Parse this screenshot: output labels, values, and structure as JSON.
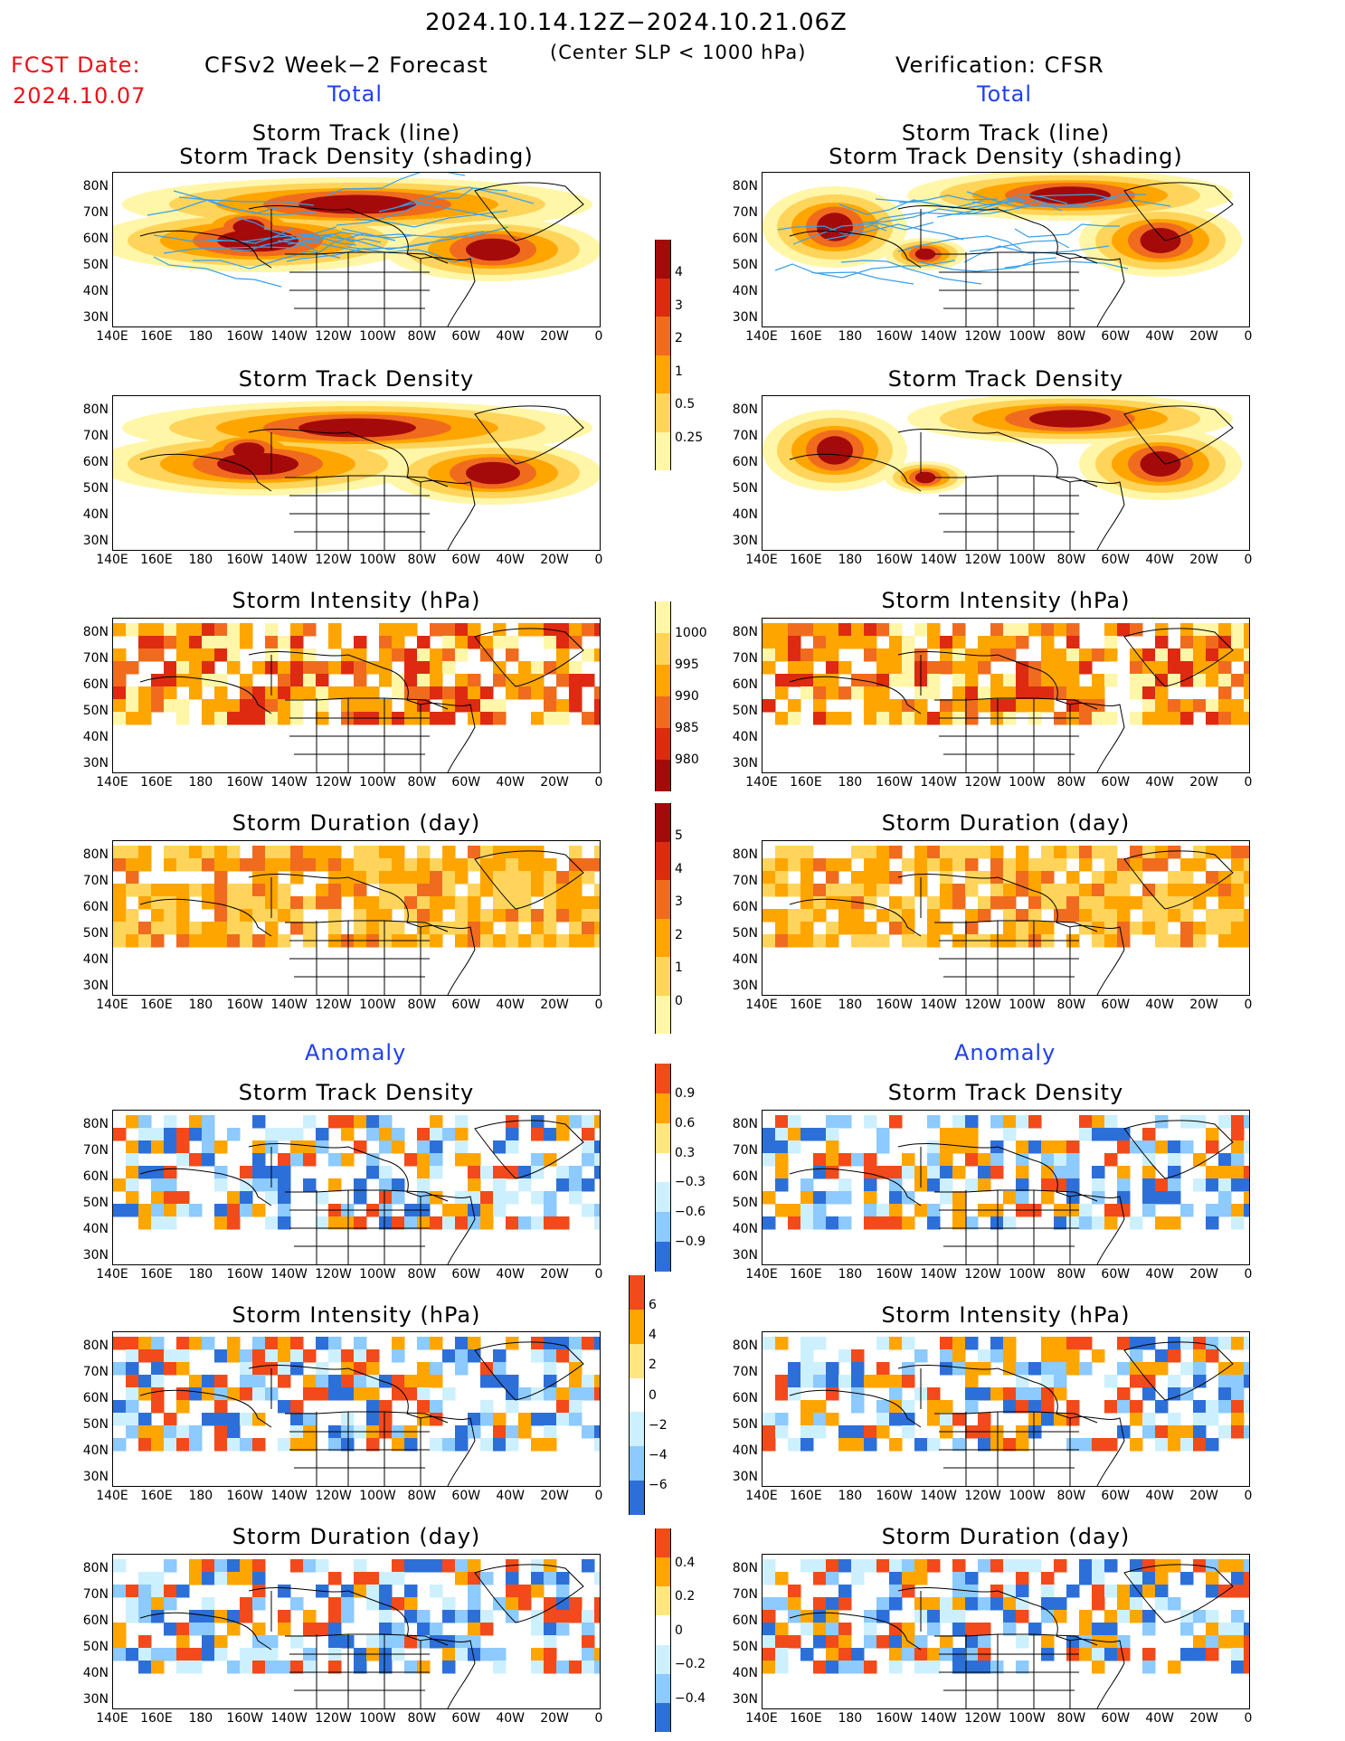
{
  "header": {
    "date_range": "2024.10.14.12Z−2024.10.21.06Z",
    "subtitle": "(Center SLP < 1000 hPa)",
    "fcst_label": "FCST Date:",
    "fcst_date": "2024.10.07",
    "model_title": "CFSv2 Week−2 Forecast",
    "verification": "Verification: CFSR"
  },
  "sections": {
    "total_left": "Total",
    "total_right": "Total",
    "anomaly_left": "Anomaly",
    "anomaly_right": "Anomaly"
  },
  "panel_titles": {
    "track_line": "Storm Track (line)",
    "track_shading": "Storm Track Density (shading)",
    "density": "Storm Track Density",
    "intensity": "Storm Intensity (hPa)",
    "duration": "Storm Duration (day)"
  },
  "axes": {
    "lat_labels": [
      "80N",
      "70N",
      "60N",
      "50N",
      "40N",
      "30N"
    ],
    "lon_labels": [
      "140E",
      "160E",
      "180",
      "160W",
      "140W",
      "120W",
      "100W",
      "80W",
      "60W",
      "40W",
      "20W",
      "0"
    ]
  },
  "colorbars": {
    "density_total": [
      "4",
      "3",
      "2",
      "1",
      "0.5",
      "0.25"
    ],
    "intensity_total": [
      "1000",
      "995",
      "990",
      "985",
      "980"
    ],
    "duration_total": [
      "5",
      "4",
      "3",
      "2",
      "1",
      "0"
    ],
    "density_anom": [
      "0.9",
      "0.6",
      "0.3",
      "−0.3",
      "−0.6",
      "−0.9"
    ],
    "intensity_anom": [
      "6",
      "4",
      "2",
      "0",
      "−2",
      "−4",
      "−6"
    ],
    "duration_anom": [
      "0.4",
      "0.2",
      "0",
      "−0.2",
      "−0.4"
    ]
  },
  "colors": {
    "seq": [
      "#fff6a8",
      "#ffd45a",
      "#ffa500",
      "#f06b1e",
      "#dd2a10",
      "#a50a0a"
    ],
    "div_pos": [
      "#ffe680",
      "#ffa500",
      "#f24a1a"
    ],
    "div_neg": [
      "#cdf0ff",
      "#8ccaff",
      "#2d6fd8"
    ],
    "track_line": "#3aa0e8"
  }
}
